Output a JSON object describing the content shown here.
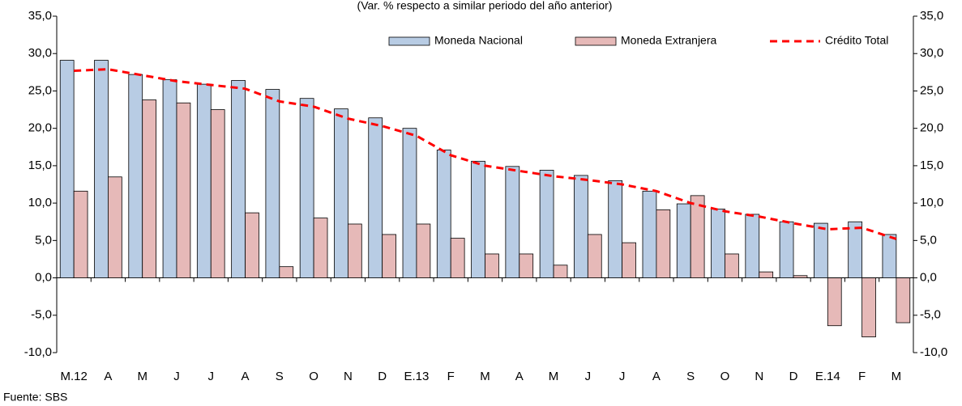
{
  "chart_data": {
    "type": "bar-line",
    "subtitle": "(Var. % respecto a similar periodo del año anterior)",
    "source": "Fuente: SBS",
    "categories": [
      "M.12",
      "A",
      "M",
      "J",
      "J",
      "A",
      "S",
      "O",
      "N",
      "D",
      "E.13",
      "F",
      "M",
      "A",
      "M",
      "J",
      "J",
      "A",
      "S",
      "O",
      "N",
      "D",
      "E.14",
      "F",
      "M"
    ],
    "series": [
      {
        "name": "Moneda Nacional",
        "type": "bar",
        "color": "#b8cce4",
        "values": [
          29.1,
          29.1,
          27.2,
          26.5,
          25.9,
          26.4,
          25.2,
          24.0,
          22.6,
          21.4,
          20.0,
          17.1,
          15.6,
          14.9,
          14.4,
          13.7,
          13.0,
          11.6,
          9.9,
          9.2,
          8.5,
          7.5,
          7.3,
          7.5,
          5.8
        ]
      },
      {
        "name": "Moneda Extranjera",
        "type": "bar",
        "color": "#e6b9b8",
        "values": [
          11.6,
          13.5,
          23.8,
          23.4,
          22.5,
          8.7,
          1.5,
          8.0,
          7.2,
          5.8,
          7.2,
          5.3,
          3.2,
          3.2,
          1.7,
          5.8,
          4.7,
          9.1,
          11.0,
          3.2,
          0.8,
          0.3,
          -6.4,
          -7.9,
          -6.0
        ]
      },
      {
        "name": "Crédito Total",
        "type": "line",
        "color": "#ff0000",
        "values": [
          27.7,
          27.9,
          27.1,
          26.3,
          25.8,
          25.3,
          23.6,
          22.9,
          21.3,
          20.3,
          19.0,
          16.4,
          15.0,
          14.3,
          13.6,
          13.1,
          12.5,
          11.6,
          10.0,
          8.9,
          8.2,
          7.3,
          6.5,
          6.7,
          5.2
        ]
      }
    ],
    "ylim": [
      -10,
      35
    ],
    "yticks": [
      {
        "value": -10,
        "label": "-10,0"
      },
      {
        "value": -5,
        "label": "-5,0"
      },
      {
        "value": 0,
        "label": "0,0"
      },
      {
        "value": 5,
        "label": "5,0"
      },
      {
        "value": 10,
        "label": "10,0"
      },
      {
        "value": 15,
        "label": "15,0"
      },
      {
        "value": 20,
        "label": "20,0"
      },
      {
        "value": 25,
        "label": "25,0"
      },
      {
        "value": 30,
        "label": "30,0"
      },
      {
        "value": 35,
        "label": "35,0"
      }
    ],
    "y2lim": [
      -10,
      35
    ],
    "y2ticks": [
      {
        "value": -10,
        "label": "-10,0"
      },
      {
        "value": -5,
        "label": "-5,0"
      },
      {
        "value": 0,
        "label": "0,0"
      },
      {
        "value": 5,
        "label": "5,0"
      },
      {
        "value": 10,
        "label": "10,0"
      },
      {
        "value": 15,
        "label": "15,0"
      },
      {
        "value": 20,
        "label": "20,0"
      },
      {
        "value": 25,
        "label": "25,0"
      },
      {
        "value": 30,
        "label": "30,0"
      },
      {
        "value": 35,
        "label": "35,0"
      }
    ],
    "legend": "top-right"
  }
}
